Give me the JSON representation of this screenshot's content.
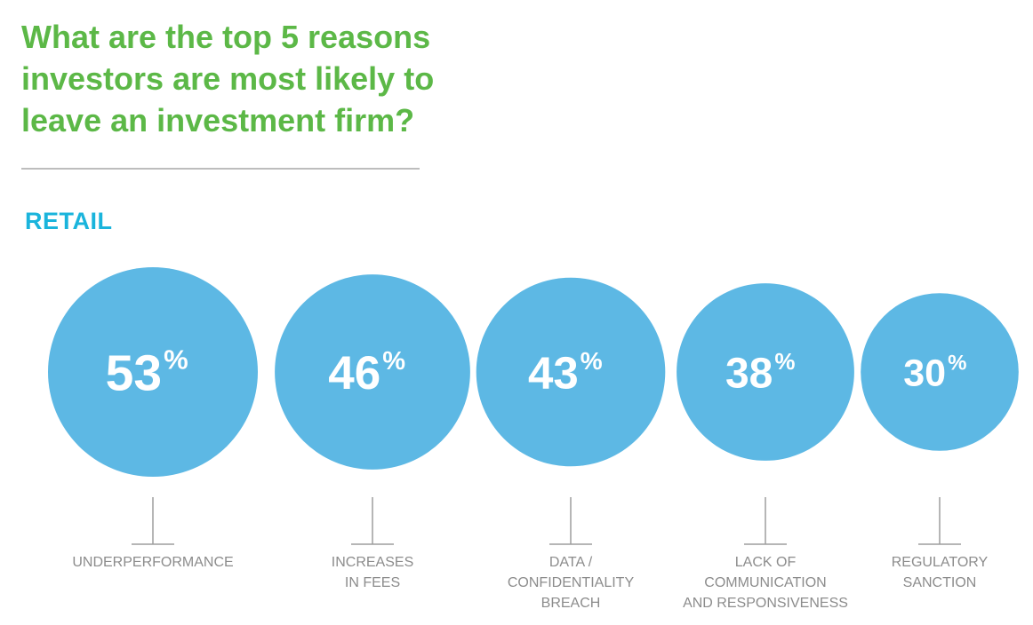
{
  "title_lines": [
    "What are the top 5 reasons",
    "investors are most likely to",
    "leave an investment firm?"
  ],
  "section_label": "RETAIL",
  "colors": {
    "title": "#5cb847",
    "section_label": "#1ab4dc",
    "bubble": "#5db8e4",
    "bubble_text": "#ffffff",
    "connector": "#9e9e9e",
    "category_label": "#8c8c8c",
    "divider": "#bdbdbd"
  },
  "chart_data": {
    "type": "bubble",
    "value_suffix": "%",
    "categories": [
      [
        "UNDERPERFORMANCE"
      ],
      [
        "INCREASES",
        "IN FEES"
      ],
      [
        "DATA /",
        "CONFIDENTIALITY",
        "BREACH"
      ],
      [
        "LACK OF",
        "COMMUNICATION",
        "AND RESPONSIVENESS"
      ],
      [
        "REGULATORY",
        "SANCTION"
      ]
    ],
    "values": [
      53,
      46,
      43,
      38,
      30
    ]
  }
}
